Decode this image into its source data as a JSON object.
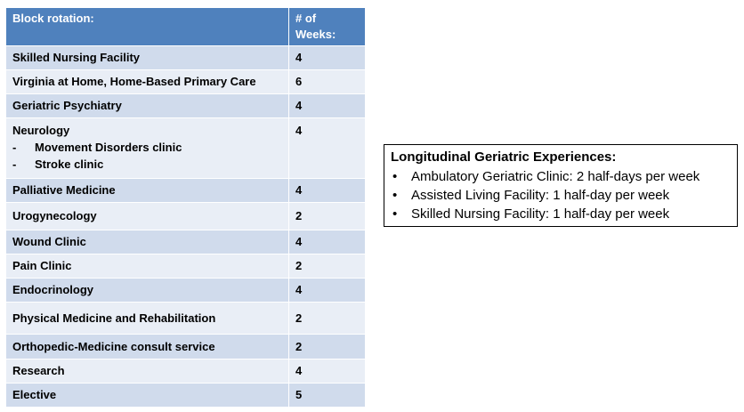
{
  "table": {
    "header": {
      "rotation": "Block rotation:",
      "weeks": "# of Weeks:"
    },
    "rows": [
      {
        "name": "Skilled Nursing Facility",
        "weeks": "4"
      },
      {
        "name": "Virginia at Home, Home-Based Primary Care",
        "weeks": "6"
      },
      {
        "name": "Geriatric Psychiatry",
        "weeks": "4"
      },
      {
        "name": "Neurology",
        "weeks": "4",
        "subitems": [
          "Movement Disorders clinic",
          "Stroke clinic"
        ]
      },
      {
        "name": "Palliative Medicine",
        "weeks": "4"
      },
      {
        "name": "Urogynecology",
        "weeks": "2"
      },
      {
        "name": "Wound Clinic",
        "weeks": "4"
      },
      {
        "name": "Pain Clinic",
        "weeks": "2"
      },
      {
        "name": "Endocrinology",
        "weeks": "4"
      },
      {
        "name": "Physical Medicine and Rehabilitation",
        "weeks": "2"
      },
      {
        "name": "Orthopedic-Medicine consult service",
        "weeks": "2"
      },
      {
        "name": "Research",
        "weeks": "4"
      },
      {
        "name": "Elective",
        "weeks": "5"
      }
    ],
    "colors": {
      "header_bg": "#4f81bd",
      "row_odd": "#d0dbec",
      "row_even": "#e9eef6"
    }
  },
  "longitudinal": {
    "title": "Longitudinal Geriatric Experiences:",
    "items": [
      "Ambulatory Geriatric Clinic: 2 half-days per week",
      "Assisted Living Facility: 1 half-day per week",
      "Skilled Nursing Facility: 1 half-day per week"
    ]
  },
  "glyphs": {
    "dash": "-",
    "bullet": "•"
  }
}
